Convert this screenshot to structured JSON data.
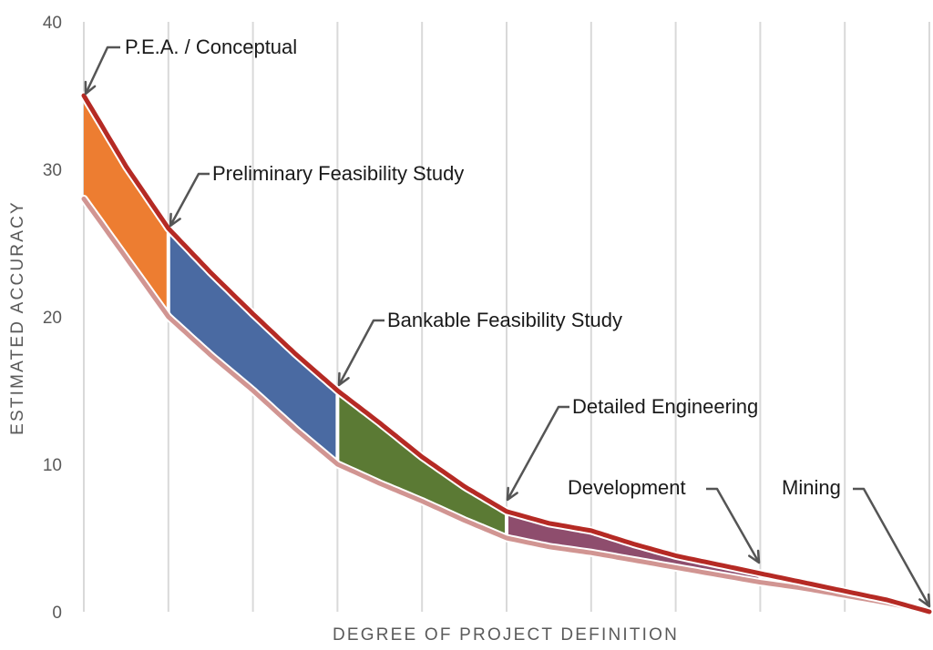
{
  "chart_data": {
    "type": "area",
    "xlabel": "DEGREE OF PROJECT DEFINITION",
    "ylabel": "ESTIMATED ACCURACY",
    "ylim": [
      0,
      40
    ],
    "yticks": [
      0,
      10,
      20,
      30,
      40
    ],
    "xlim": [
      0,
      10
    ],
    "grid": "vertical",
    "colors": {
      "upper_line": "#b52a24",
      "lower_line": "#d19592",
      "grid": "#d9d9d9",
      "arrow": "#555555",
      "separator": "#ffffff"
    },
    "upper": {
      "x": [
        0,
        0.5,
        1,
        1.5,
        2,
        2.5,
        3,
        3.5,
        4,
        4.5,
        5,
        5.5,
        6,
        6.5,
        7,
        7.5,
        8,
        8.5,
        9,
        9.5,
        10
      ],
      "y": [
        35,
        30.2,
        26,
        23,
        20.2,
        17.5,
        15,
        12.8,
        10.5,
        8.5,
        6.8,
        6.0,
        5.5,
        4.6,
        3.8,
        3.2,
        2.6,
        2.0,
        1.4,
        0.8,
        0
      ]
    },
    "lower": {
      "x": [
        0,
        0.5,
        1,
        1.5,
        2,
        2.5,
        3,
        3.5,
        4,
        4.5,
        5,
        5.5,
        6,
        6.5,
        7,
        7.5,
        8,
        8.5,
        9,
        9.5,
        10
      ],
      "y": [
        28,
        24,
        20,
        17.4,
        15,
        12.4,
        10,
        8.7,
        7.5,
        6.2,
        5,
        4.4,
        4,
        3.5,
        3.0,
        2.5,
        2.0,
        1.6,
        1.1,
        0.6,
        0
      ]
    },
    "phases": [
      {
        "name": "P.E.A. / Conceptual",
        "x_start": 0,
        "x_end": 1,
        "color": "#ed7d31"
      },
      {
        "name": "Preliminary Feasibility Study",
        "x_start": 1,
        "x_end": 3,
        "color": "#4a6aa2"
      },
      {
        "name": "Bankable Feasibility Study",
        "x_start": 3,
        "x_end": 5,
        "color": "#5b7a34"
      },
      {
        "name": "Detailed Engineering",
        "x_start": 5,
        "x_end": 8,
        "color": "#8e4d6d"
      },
      {
        "name": "Development",
        "x_start": 8,
        "x_end": 10,
        "color": "#d9d9d9"
      }
    ],
    "annotations": [
      {
        "label": "P.E.A. / Conceptual",
        "x": 0,
        "y": 35
      },
      {
        "label": "Preliminary Feasibility Study",
        "x": 1,
        "y": 26
      },
      {
        "label": "Bankable Feasibility Study",
        "x": 3,
        "y": 15
      },
      {
        "label": "Detailed Engineering",
        "x": 5,
        "y": 6.8
      },
      {
        "label": "Development",
        "x": 8,
        "y": 2.6
      },
      {
        "label": "Mining",
        "x": 10,
        "y": 0
      }
    ]
  }
}
